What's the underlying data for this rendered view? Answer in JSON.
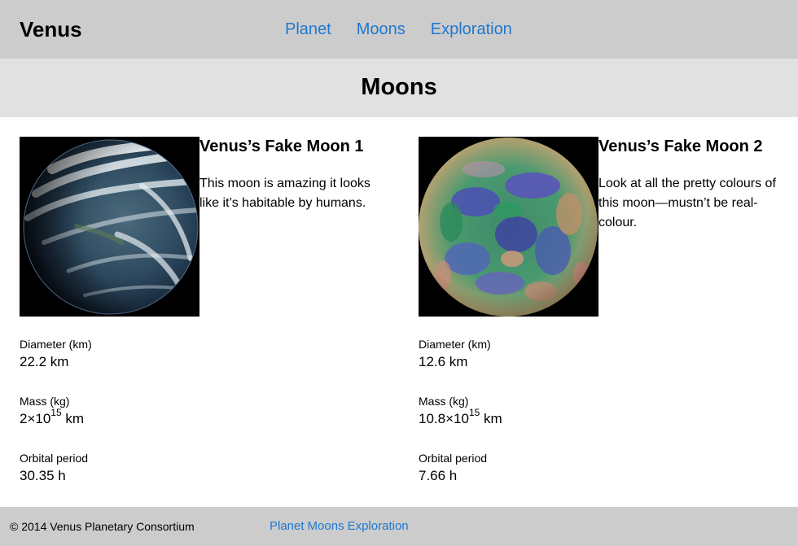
{
  "header": {
    "site_title": "Venus",
    "nav": [
      "Planet",
      "Moons",
      "Exploration"
    ]
  },
  "banner": {
    "title": "Moons"
  },
  "moons": [
    {
      "name": "Venus’s Fake Moon 1",
      "description": "This moon is amazing it looks like it’s habitable by humans.",
      "image": "earth-like-moon-photo",
      "facts": {
        "diameter_label": "Diameter (km)",
        "diameter_value": "22.2 km",
        "mass_label": "Mass (kg)",
        "mass_base": "2×10",
        "mass_exp": "15",
        "mass_unit": " km",
        "orbital_label": "Orbital period",
        "orbital_value": "30.35 h"
      }
    },
    {
      "name": "Venus’s Fake Moon 2",
      "description": "Look at all the pretty colours of this moon—mustn’t be real-colour.",
      "image": "false-colour-venus-globe",
      "facts": {
        "diameter_label": "Diameter (km)",
        "diameter_value": "12.6 km",
        "mass_label": "Mass (kg)",
        "mass_base": "10.8×10",
        "mass_exp": "15",
        "mass_unit": " km",
        "orbital_label": "Orbital period",
        "orbital_value": "7.66 h"
      }
    }
  ],
  "footer": {
    "copyright": "© 2014 Venus Planetary Consortium",
    "nav": [
      "Planet",
      "Moons",
      "Exploration"
    ]
  },
  "colors": {
    "link": "#1f78d1",
    "header_bg": "#cccccc",
    "banner_bg": "#e1e1e1"
  }
}
